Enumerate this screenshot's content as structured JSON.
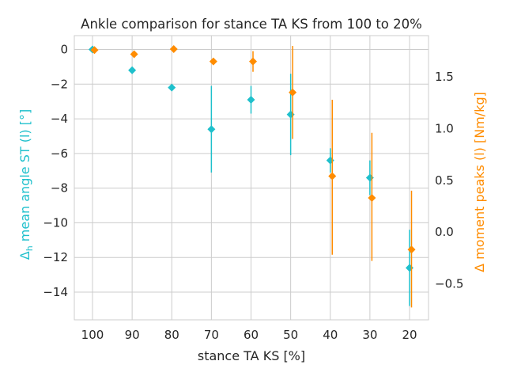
{
  "chart_data": {
    "type": "scatter",
    "title": "Ankle comparison for stance TA KS from 100 to 20%",
    "xlabel": "stance TA KS [%]",
    "ylabel_left_prefix": "Δ",
    "ylabel_left_sub": "h",
    "ylabel_left_rest": " mean angle ST (l) [°]",
    "ylabel_right": "Δ moment peaks (l) [Nm/kg]",
    "x_reversed": true,
    "x_ticks": [
      "100",
      "90",
      "80",
      "70",
      "60",
      "50",
      "40",
      "30",
      "20"
    ],
    "y_left_ticks": [
      "0",
      "−2",
      "−4",
      "−6",
      "−8",
      "−10",
      "−12",
      "−14"
    ],
    "y_right_ticks": [
      "1.5",
      "1.0",
      "0.5",
      "0.0",
      "−0.5"
    ],
    "ylim_left": [
      -15.6,
      0.8
    ],
    "ylim_right": [
      -0.85,
      1.9
    ],
    "grid": true,
    "colors": {
      "left": "#1fc0cc",
      "right": "#ff8c00"
    },
    "series": [
      {
        "axis": "left",
        "x": [
          100,
          90,
          80,
          70,
          60,
          50,
          40,
          30,
          20
        ],
        "y": [
          0.0,
          -1.2,
          -2.2,
          -4.6,
          -2.9,
          -3.75,
          -6.4,
          -7.4,
          -12.6
        ],
        "err_low": [
          0.0,
          0.0,
          0.0,
          -7.1,
          -3.7,
          -6.1,
          -7.1,
          -8.4,
          -14.8
        ],
        "err_high": [
          0.0,
          0.0,
          0.0,
          -2.1,
          -2.1,
          -1.4,
          -5.7,
          -6.4,
          -10.4
        ]
      },
      {
        "axis": "right",
        "x": [
          99.5,
          89.5,
          79.5,
          69.5,
          59.5,
          49.5,
          39.5,
          29.5,
          19.5
        ],
        "y": [
          1.76,
          1.72,
          1.77,
          1.65,
          1.65,
          1.35,
          0.54,
          0.33,
          -0.17
        ],
        "err_low": [
          1.76,
          1.72,
          1.77,
          1.65,
          1.55,
          0.9,
          -0.22,
          -0.28,
          -0.73
        ],
        "err_high": [
          1.76,
          1.72,
          1.77,
          1.65,
          1.75,
          1.8,
          1.28,
          0.96,
          0.4
        ]
      }
    ]
  }
}
